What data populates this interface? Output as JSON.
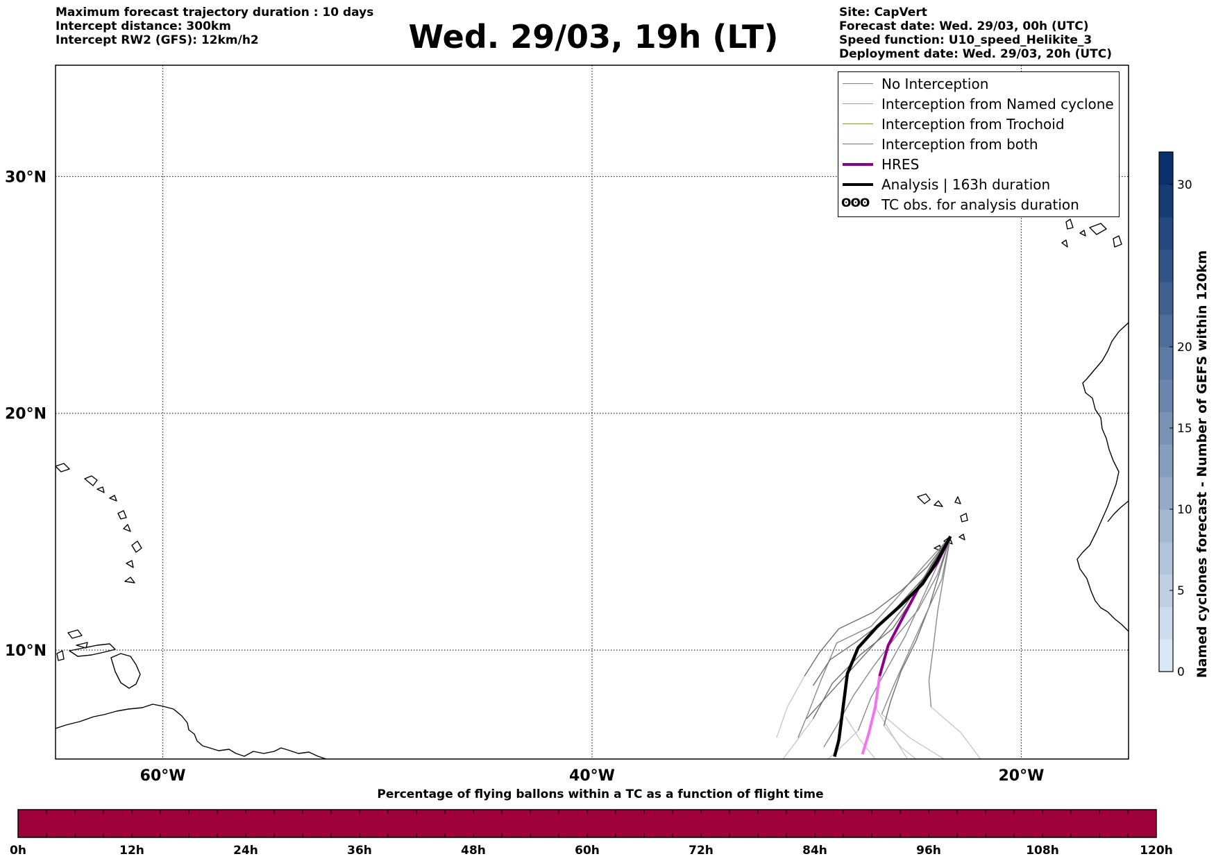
{
  "header": {
    "left_lines": [
      "Maximum forecast trajectory duration : 10 days",
      "Intercept distance: 300km",
      "Intercept RW2 (GFS):  12km/h2"
    ],
    "title": "Wed. 29/03, 19h (LT)",
    "right_lines": [
      "Site: CapVert",
      "Forecast date: Wed. 29/03, 00h (UTC)",
      "Speed function: U10_speed_Helikite_3",
      "Deployment date: Wed. 29/03, 20h (UTC)"
    ]
  },
  "map": {
    "lon_range": [
      -65,
      -15
    ],
    "lat_range": [
      5.4,
      34.7
    ],
    "longitude_ticks": [
      {
        "value": -60,
        "label": "60°W"
      },
      {
        "value": -40,
        "label": "40°W"
      },
      {
        "value": -20,
        "label": "20°W"
      }
    ],
    "latitude_ticks": [
      {
        "value": 30,
        "label": "30°N"
      },
      {
        "value": 20,
        "label": "20°N"
      },
      {
        "value": 10,
        "label": "10°N"
      }
    ],
    "gridlines": "dotted"
  },
  "legend": {
    "entries": [
      {
        "label": "No Interception",
        "color": "#808080",
        "style": "thin"
      },
      {
        "label": "Interception from Named cyclone",
        "color": "#ff7f50",
        "style": "thin"
      },
      {
        "label": "Interception from Trochoid",
        "color": "#9b8b3b",
        "style": "thin"
      },
      {
        "label": "Interception from both",
        "color": "#2ca02c",
        "style": "thin"
      },
      {
        "label": "HRES",
        "color": "#8b008b",
        "style": "thick"
      },
      {
        "label": "Analysis | 163h duration",
        "color": "#000000",
        "style": "thick"
      },
      {
        "label": "TC obs. for analysis duration",
        "color": "#000000",
        "style": "glyph",
        "glyph": "ʘʘʘ"
      }
    ]
  },
  "trajectories": {
    "launch": [
      -23.3,
      14.8
    ],
    "analysis": [
      [
        -23.3,
        14.8
      ],
      [
        -23.9,
        13.8
      ],
      [
        -24.6,
        12.8
      ],
      [
        -25.6,
        11.9
      ],
      [
        -26.7,
        11.0
      ],
      [
        -27.6,
        10.1
      ],
      [
        -28.1,
        9.0
      ],
      [
        -28.3,
        7.6
      ],
      [
        -28.5,
        6.2
      ],
      [
        -28.7,
        5.5
      ]
    ],
    "hres": [
      [
        -23.3,
        14.8
      ],
      [
        -23.9,
        13.7
      ],
      [
        -24.8,
        12.6
      ],
      [
        -25.5,
        11.4
      ],
      [
        -26.2,
        10.2
      ],
      [
        -26.6,
        8.9
      ],
      [
        -26.8,
        7.6
      ],
      [
        -27.1,
        6.5
      ],
      [
        -27.4,
        5.6
      ]
    ],
    "ensemble": [
      [
        [
          -23.3,
          14.8
        ],
        [
          -24.6,
          13.5
        ],
        [
          -25.8,
          12.2
        ],
        [
          -27.0,
          11.0
        ],
        [
          -28.6,
          10.3
        ],
        [
          -29.3,
          8.8
        ],
        [
          -29.9,
          7.4
        ],
        [
          -30.4,
          6.3
        ]
      ],
      [
        [
          -23.3,
          14.8
        ],
        [
          -24.2,
          13.6
        ],
        [
          -25.1,
          12.1
        ],
        [
          -26.0,
          10.9
        ],
        [
          -27.5,
          9.8
        ],
        [
          -28.8,
          8.6
        ],
        [
          -29.7,
          7.1
        ]
      ],
      [
        [
          -23.3,
          14.8
        ],
        [
          -24.0,
          13.4
        ],
        [
          -24.7,
          12.0
        ],
        [
          -25.4,
          10.6
        ],
        [
          -26.2,
          9.3
        ],
        [
          -27.0,
          8.0
        ],
        [
          -27.6,
          6.6
        ]
      ],
      [
        [
          -23.3,
          14.8
        ],
        [
          -23.8,
          13.3
        ],
        [
          -24.3,
          11.8
        ],
        [
          -24.9,
          10.4
        ],
        [
          -25.6,
          9.1
        ],
        [
          -26.1,
          7.8
        ],
        [
          -26.4,
          6.8
        ]
      ],
      [
        [
          -23.3,
          14.8
        ],
        [
          -23.6,
          13.2
        ],
        [
          -23.9,
          11.6
        ],
        [
          -24.1,
          10.1
        ],
        [
          -24.3,
          8.7
        ],
        [
          -24.2,
          7.6
        ]
      ],
      [
        [
          -23.3,
          14.8
        ],
        [
          -24.4,
          13.5
        ],
        [
          -25.6,
          12.5
        ],
        [
          -26.9,
          11.6
        ],
        [
          -28.5,
          10.9
        ],
        [
          -29.4,
          9.9
        ],
        [
          -30.1,
          8.9
        ]
      ],
      [
        [
          -23.3,
          14.8
        ],
        [
          -23.9,
          13.2
        ],
        [
          -24.8,
          11.7
        ],
        [
          -25.9,
          10.5
        ],
        [
          -26.9,
          9.3
        ],
        [
          -27.8,
          8.1
        ],
        [
          -28.6,
          6.8
        ],
        [
          -29.2,
          5.9
        ]
      ],
      [
        [
          -23.3,
          14.8
        ],
        [
          -24.1,
          13.5
        ],
        [
          -25.2,
          12.4
        ],
        [
          -26.3,
          11.3
        ],
        [
          -27.6,
          10.4
        ],
        [
          -28.9,
          9.6
        ],
        [
          -29.7,
          8.5
        ]
      ],
      [
        [
          -23.3,
          14.8
        ],
        [
          -23.7,
          13.0
        ],
        [
          -24.5,
          11.4
        ],
        [
          -25.2,
          10.0
        ],
        [
          -25.9,
          8.6
        ],
        [
          -26.5,
          7.3
        ]
      ],
      [
        [
          -23.3,
          14.8
        ],
        [
          -24.3,
          13.4
        ],
        [
          -25.4,
          11.9
        ],
        [
          -26.6,
          10.5
        ],
        [
          -27.9,
          9.2
        ],
        [
          -29.1,
          8.0
        ],
        [
          -30.0,
          7.1
        ]
      ]
    ],
    "ensemble_late": [
      [
        [
          -29.7,
          7.1
        ],
        [
          -30.6,
          6.0
        ],
        [
          -31.1,
          5.4
        ]
      ],
      [
        [
          -27.6,
          6.6
        ],
        [
          -28.4,
          5.9
        ],
        [
          -29.0,
          5.4
        ]
      ],
      [
        [
          -26.4,
          6.8
        ],
        [
          -25.6,
          5.9
        ],
        [
          -24.9,
          5.4
        ]
      ],
      [
        [
          -24.2,
          7.6
        ],
        [
          -22.8,
          6.5
        ],
        [
          -21.9,
          5.4
        ]
      ],
      [
        [
          -26.5,
          7.3
        ],
        [
          -25.2,
          6.3
        ],
        [
          -23.6,
          5.4
        ]
      ],
      [
        [
          -30.1,
          8.9
        ],
        [
          -30.9,
          7.6
        ],
        [
          -31.4,
          6.3
        ]
      ],
      [
        [
          -26.8,
          7.6
        ],
        [
          -26.0,
          6.4
        ],
        [
          -25.3,
          5.4
        ]
      ],
      [
        [
          -28.2,
          7.2
        ],
        [
          -27.5,
          6.2
        ],
        [
          -26.8,
          5.4
        ]
      ]
    ]
  },
  "colorbar_right": {
    "label": "Named cyclones forecast - Number of GEFS within 120km",
    "min": 0,
    "max": 32,
    "ticks": [
      0,
      5,
      10,
      15,
      20,
      30
    ],
    "color_low": "#dbe9f6",
    "color_high": "#08306b"
  },
  "bottom_bar": {
    "title": "Percentage of flying ballons within a TC as a function of flight time",
    "fill_color": "#9e003a",
    "tick_labels": [
      "0h",
      "12h",
      "24h",
      "36h",
      "48h",
      "60h",
      "72h",
      "84h",
      "96h",
      "108h",
      "120h"
    ]
  }
}
